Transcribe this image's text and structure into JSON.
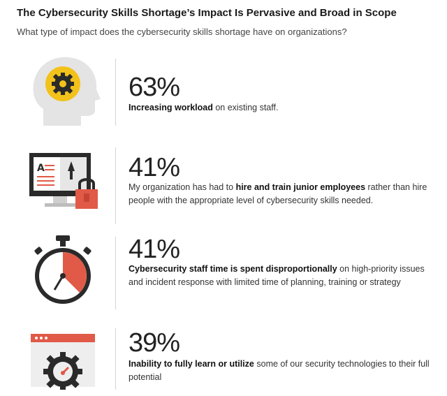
{
  "header": {
    "title": "The Cybersecurity Skills Shortage’s Impact Is Pervasive and Broad in Scope",
    "subtitle": "What type of impact does the cybersecurity skills shortage have on organizations?"
  },
  "items": [
    {
      "percent": "63%",
      "bold": "Increasing workload",
      "rest": " on existing staff.",
      "icon": "head-gear-icon"
    },
    {
      "percent": "41%",
      "pre": "My organization has had to ",
      "bold": "hire and train junior employees",
      "rest": " rather than hire people with the appropriate level of cybersecurity skills needed.",
      "icon": "monitor-lock-icon"
    },
    {
      "percent": "41%",
      "bold": "Cybersecurity staff time is spent disproportionally",
      "rest": " on high-priority issues and incident response with limited time of planning, training or strategy",
      "icon": "stopwatch-icon"
    },
    {
      "percent": "39%",
      "bold": "Inability to fully learn or utilize",
      "rest": " some of our security technologies to their full potential",
      "icon": "gear-gauge-window-icon"
    }
  ],
  "colors": {
    "accent_red": "#e05a47",
    "accent_yellow": "#f3c21a",
    "icon_gray": "#e4e4e4",
    "dark": "#2a2a2a"
  }
}
